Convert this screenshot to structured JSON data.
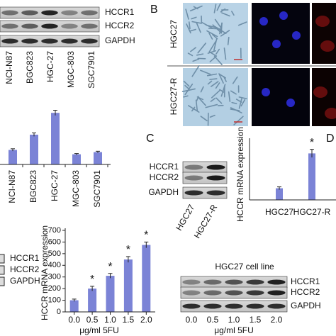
{
  "blot_a": {
    "bands": [
      "HCCR1",
      "HCCR2",
      "GAPDH"
    ],
    "lanes": [
      "NCI-N87",
      "BGC823",
      "HGC-27",
      "MGC-803",
      "SGC7901"
    ]
  },
  "chart_a": {
    "type": "bar",
    "categories": [
      "NCI-N87",
      "BGC823",
      "HGC-27",
      "MGC-803",
      "SGC7901"
    ],
    "values": [
      1.0,
      2.05,
      3.55,
      0.7,
      0.85
    ],
    "errors": [
      0.08,
      0.12,
      0.18,
      0.05,
      0.06
    ],
    "ylim": [
      0,
      4
    ],
    "color": "#7b83d6"
  },
  "panel_b": {
    "label": "B",
    "rows": [
      "HGC27",
      "HGC27-R"
    ]
  },
  "panel_c": {
    "label": "C",
    "bands": [
      "HCCR1",
      "HCCR2",
      "GAPDH"
    ],
    "lanes": [
      "HGC27",
      "HGC27-R"
    ]
  },
  "chart_c": {
    "type": "bar",
    "categories": [
      "HGC27",
      "HGC27-R"
    ],
    "values": [
      100,
      400
    ],
    "errors": [
      12,
      35
    ],
    "significant": [
      false,
      true
    ],
    "star": "*",
    "ylabel": "HCCR mRNA expression",
    "ylim": [
      0,
      500
    ],
    "color": "#7b83d6"
  },
  "panel_d": {
    "label": "D"
  },
  "chart_e": {
    "type": "bar",
    "x": [
      0,
      0.5,
      1,
      1.5,
      2
    ],
    "values": [
      100,
      200,
      310,
      450,
      575
    ],
    "errors": [
      10,
      20,
      20,
      25,
      25
    ],
    "significant": [
      false,
      true,
      true,
      true,
      true
    ],
    "star": "*",
    "xlabel": "μg/ml 5FU",
    "ylabel": "HCCR mRNA expression",
    "xlim": [
      -0.25,
      2.25
    ],
    "ylim": [
      0,
      700
    ],
    "yticks": [
      0,
      100,
      200,
      300,
      400,
      500,
      600,
      700
    ],
    "xticks": [
      {
        "value": 0,
        "label": "0.0"
      },
      {
        "value": 0.5,
        "label": "0.5"
      },
      {
        "value": 1,
        "label": "1.0"
      },
      {
        "value": 1.5,
        "label": "1.5"
      },
      {
        "value": 2,
        "label": "2.0"
      }
    ],
    "color": "#7b83d6"
  },
  "blot_e_legend": {
    "bands": [
      "HCCR1",
      "HCCR2",
      "GAPDH"
    ]
  },
  "blot_f": {
    "title": "HGC27 cell line",
    "bands": [
      "HCCR1",
      "HCCR2",
      "GAPDH"
    ],
    "lanes": [
      "0.0",
      "0.5",
      "1.0",
      "1.5",
      "2.0"
    ],
    "xlabel": "μg/ml 5FU"
  }
}
